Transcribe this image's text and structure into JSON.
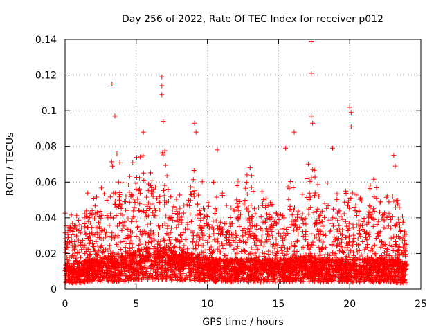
{
  "chart_data": {
    "type": "scatter",
    "title": "Day 256 of 2022, Rate Of TEC Index for receiver p012",
    "xlabel": "GPS time / hours",
    "ylabel": "ROTI / TECUs",
    "xlim": [
      0,
      25
    ],
    "ylim": [
      0,
      0.14
    ],
    "x_ticks": [
      0,
      5,
      10,
      15,
      20,
      25
    ],
    "x_tick_labels": [
      "0",
      "5",
      "10",
      "15",
      "20",
      "25"
    ],
    "y_ticks": [
      0,
      0.02,
      0.04,
      0.06,
      0.08,
      0.1,
      0.12,
      0.14
    ],
    "y_tick_labels": [
      "0",
      "0.02",
      "0.04",
      "0.06",
      "0.08",
      "0.1",
      "0.12",
      "0.14"
    ],
    "grid": true,
    "marker": "+",
    "color": "#ff0000",
    "notable_points": [
      {
        "x": 3.3,
        "y": 0.115
      },
      {
        "x": 3.5,
        "y": 0.097
      },
      {
        "x": 5.5,
        "y": 0.088
      },
      {
        "x": 6.8,
        "y": 0.119
      },
      {
        "x": 6.8,
        "y": 0.114
      },
      {
        "x": 6.8,
        "y": 0.109
      },
      {
        "x": 6.9,
        "y": 0.094
      },
      {
        "x": 9.1,
        "y": 0.093
      },
      {
        "x": 9.2,
        "y": 0.088
      },
      {
        "x": 10.7,
        "y": 0.078
      },
      {
        "x": 13.0,
        "y": 0.068
      },
      {
        "x": 15.5,
        "y": 0.079
      },
      {
        "x": 16.1,
        "y": 0.088
      },
      {
        "x": 17.3,
        "y": 0.139
      },
      {
        "x": 17.3,
        "y": 0.121
      },
      {
        "x": 17.3,
        "y": 0.097
      },
      {
        "x": 17.4,
        "y": 0.093
      },
      {
        "x": 18.8,
        "y": 0.079
      },
      {
        "x": 20.0,
        "y": 0.102
      },
      {
        "x": 20.1,
        "y": 0.099
      },
      {
        "x": 20.1,
        "y": 0.091
      },
      {
        "x": 23.1,
        "y": 0.075
      },
      {
        "x": 23.2,
        "y": 0.069
      }
    ],
    "activity_envelope": {
      "hours": [
        0,
        0.5,
        1,
        1.5,
        2,
        2.5,
        3,
        3.5,
        4,
        4.5,
        5,
        5.5,
        6,
        6.5,
        7,
        7.5,
        8,
        8.5,
        9,
        9.5,
        10,
        10.5,
        11,
        11.5,
        12,
        12.5,
        13,
        13.5,
        14,
        14.5,
        15,
        15.5,
        16,
        16.5,
        17,
        17.5,
        18,
        18.5,
        19,
        19.5,
        20,
        20.5,
        21,
        21.5,
        22,
        22.5,
        23,
        23.5,
        24
      ],
      "typical_max": [
        0.045,
        0.05,
        0.05,
        0.055,
        0.055,
        0.06,
        0.07,
        0.08,
        0.07,
        0.07,
        0.075,
        0.08,
        0.08,
        0.075,
        0.085,
        0.065,
        0.055,
        0.065,
        0.08,
        0.065,
        0.06,
        0.06,
        0.06,
        0.055,
        0.06,
        0.065,
        0.065,
        0.06,
        0.065,
        0.06,
        0.055,
        0.06,
        0.065,
        0.06,
        0.07,
        0.075,
        0.065,
        0.06,
        0.06,
        0.06,
        0.07,
        0.065,
        0.06,
        0.065,
        0.06,
        0.055,
        0.06,
        0.05,
        0.04
      ],
      "baseline": [
        0.01,
        0.01,
        0.01,
        0.011,
        0.011,
        0.012,
        0.012,
        0.012,
        0.012,
        0.013,
        0.014,
        0.015,
        0.015,
        0.015,
        0.015,
        0.014,
        0.013,
        0.013,
        0.013,
        0.012,
        0.012,
        0.011,
        0.011,
        0.011,
        0.011,
        0.011,
        0.011,
        0.011,
        0.011,
        0.011,
        0.011,
        0.011,
        0.012,
        0.012,
        0.012,
        0.012,
        0.011,
        0.011,
        0.011,
        0.011,
        0.011,
        0.011,
        0.011,
        0.011,
        0.011,
        0.011,
        0.011,
        0.01,
        0.01
      ],
      "point_count": 4800
    }
  }
}
